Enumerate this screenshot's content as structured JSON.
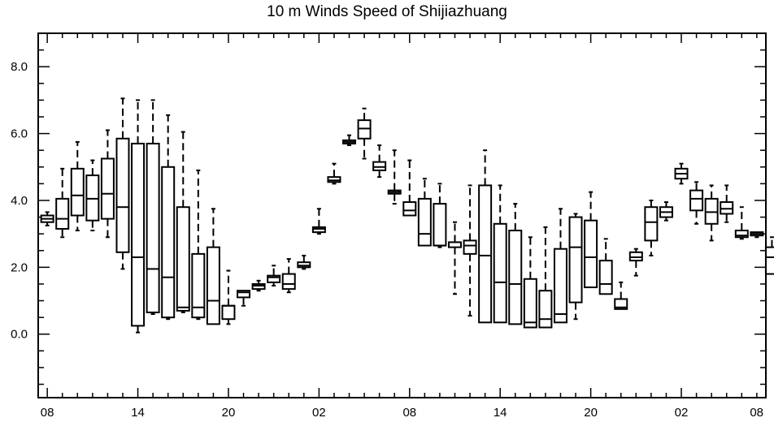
{
  "chart_data": {
    "type": "boxplot",
    "title": "10 m Winds Speed of Shijiazhuang",
    "xlabel": "",
    "ylabel": "",
    "ylim": [
      -1.9,
      9.0
    ],
    "xlim": [
      -0.6,
      47.6
    ],
    "y_ticks": [
      "0.0",
      "2.0",
      "4.0",
      "6.0",
      "8.0"
    ],
    "y_tick_values": [
      0,
      2,
      4,
      6,
      8
    ],
    "x_ticks": [
      "08",
      "14",
      "20",
      "02",
      "08",
      "14",
      "20",
      "02",
      "08"
    ],
    "x_tick_values": [
      0,
      6,
      12,
      18,
      24,
      30,
      36,
      42,
      48
    ],
    "grid": false,
    "colors": {
      "line": "#000000",
      "background": "#ffffff"
    },
    "boxes": [
      {
        "x": 0,
        "min": 3.25,
        "q1": 3.35,
        "median": 3.45,
        "q3": 3.55,
        "max": 3.65
      },
      {
        "x": 1,
        "min": 2.9,
        "q1": 3.15,
        "median": 3.45,
        "q3": 4.05,
        "max": 4.95
      },
      {
        "x": 2,
        "min": 3.1,
        "q1": 3.55,
        "median": 4.15,
        "q3": 4.95,
        "max": 5.75
      },
      {
        "x": 3,
        "min": 3.1,
        "q1": 3.4,
        "median": 4.05,
        "q3": 4.75,
        "max": 5.2
      },
      {
        "x": 4,
        "min": 2.9,
        "q1": 3.45,
        "median": 4.2,
        "q3": 5.25,
        "max": 6.1
      },
      {
        "x": 5,
        "min": 1.95,
        "q1": 2.45,
        "median": 3.8,
        "q3": 5.85,
        "max": 7.05
      },
      {
        "x": 6,
        "min": 0.05,
        "q1": 0.25,
        "median": 2.3,
        "q3": 5.7,
        "max": 7.0
      },
      {
        "x": 7,
        "min": 0.6,
        "q1": 0.65,
        "median": 1.95,
        "q3": 5.7,
        "max": 7.0
      },
      {
        "x": 8,
        "min": 0.45,
        "q1": 0.5,
        "median": 1.7,
        "q3": 5.0,
        "max": 6.55
      },
      {
        "x": 9,
        "min": 0.65,
        "q1": 0.7,
        "median": 0.8,
        "q3": 3.8,
        "max": 6.05
      },
      {
        "x": 10,
        "min": 0.45,
        "q1": 0.5,
        "median": 0.8,
        "q3": 2.4,
        "max": 4.9
      },
      {
        "x": 11,
        "min": 0.3,
        "q1": 0.3,
        "median": 1.0,
        "q3": 2.6,
        "max": 3.75
      },
      {
        "x": 12,
        "min": 0.3,
        "q1": 0.45,
        "median": 0.85,
        "q3": 0.85,
        "max": 1.9
      },
      {
        "x": 13,
        "min": 0.85,
        "q1": 1.1,
        "median": 1.25,
        "q3": 1.3,
        "max": 1.3
      },
      {
        "x": 14,
        "min": 1.3,
        "q1": 1.35,
        "median": 1.45,
        "q3": 1.5,
        "max": 1.6
      },
      {
        "x": 15,
        "min": 1.45,
        "q1": 1.55,
        "median": 1.7,
        "q3": 1.75,
        "max": 2.05
      },
      {
        "x": 16,
        "min": 1.25,
        "q1": 1.35,
        "median": 1.5,
        "q3": 1.8,
        "max": 2.25
      },
      {
        "x": 17,
        "min": 1.95,
        "q1": 2.0,
        "median": 2.05,
        "q3": 2.15,
        "max": 2.35
      },
      {
        "x": 18,
        "min": 3.0,
        "q1": 3.05,
        "median": 3.15,
        "q3": 3.2,
        "max": 3.75
      },
      {
        "x": 19,
        "min": 4.5,
        "q1": 4.55,
        "median": 4.6,
        "q3": 4.7,
        "max": 5.1
      },
      {
        "x": 20,
        "min": 5.65,
        "q1": 5.7,
        "median": 5.75,
        "q3": 5.8,
        "max": 5.95
      },
      {
        "x": 21,
        "min": 5.25,
        "q1": 5.85,
        "median": 6.15,
        "q3": 6.4,
        "max": 6.75
      },
      {
        "x": 22,
        "min": 4.7,
        "q1": 4.9,
        "median": 5.0,
        "q3": 5.15,
        "max": 5.65
      },
      {
        "x": 23,
        "min": 3.9,
        "q1": 4.2,
        "median": 4.25,
        "q3": 4.3,
        "max": 5.5
      },
      {
        "x": 24,
        "min": 3.55,
        "q1": 3.55,
        "median": 3.7,
        "q3": 3.95,
        "max": 5.2
      },
      {
        "x": 25,
        "min": 2.65,
        "q1": 2.65,
        "median": 3.0,
        "q3": 4.05,
        "max": 4.65
      },
      {
        "x": 26,
        "min": 2.6,
        "q1": 2.65,
        "median": 2.65,
        "q3": 3.9,
        "max": 4.5
      },
      {
        "x": 27,
        "min": 1.2,
        "q1": 2.6,
        "median": 2.75,
        "q3": 2.75,
        "max": 3.35
      },
      {
        "x": 28,
        "min": 0.55,
        "q1": 2.4,
        "median": 2.65,
        "q3": 2.8,
        "max": 4.45
      },
      {
        "x": 29,
        "min": 0.35,
        "q1": 0.35,
        "median": 2.35,
        "q3": 4.45,
        "max": 5.5
      },
      {
        "x": 30,
        "min": 0.35,
        "q1": 0.35,
        "median": 1.55,
        "q3": 3.3,
        "max": 4.45
      },
      {
        "x": 31,
        "min": 0.3,
        "q1": 0.3,
        "median": 1.5,
        "q3": 3.1,
        "max": 3.9
      },
      {
        "x": 32,
        "min": 0.2,
        "q1": 0.2,
        "median": 0.35,
        "q3": 1.65,
        "max": 2.9
      },
      {
        "x": 33,
        "min": 0.2,
        "q1": 0.2,
        "median": 0.45,
        "q3": 1.3,
        "max": 3.2
      },
      {
        "x": 34,
        "min": 0.35,
        "q1": 0.35,
        "median": 0.6,
        "q3": 2.55,
        "max": 3.75
      },
      {
        "x": 35,
        "min": 0.45,
        "q1": 0.95,
        "median": 2.6,
        "q3": 3.5,
        "max": 3.6
      },
      {
        "x": 36,
        "min": 1.4,
        "q1": 1.4,
        "median": 2.3,
        "q3": 3.4,
        "max": 4.25
      },
      {
        "x": 37,
        "min": 1.2,
        "q1": 1.2,
        "median": 1.5,
        "q3": 2.2,
        "max": 2.85
      },
      {
        "x": 38,
        "min": 0.75,
        "q1": 0.75,
        "median": 0.8,
        "q3": 1.05,
        "max": 1.55
      },
      {
        "x": 39,
        "min": 1.75,
        "q1": 2.2,
        "median": 2.3,
        "q3": 2.45,
        "max": 2.55
      },
      {
        "x": 40,
        "min": 2.35,
        "q1": 2.8,
        "median": 3.35,
        "q3": 3.8,
        "max": 4.0
      },
      {
        "x": 41,
        "min": 3.4,
        "q1": 3.5,
        "median": 3.65,
        "q3": 3.8,
        "max": 3.95
      },
      {
        "x": 42,
        "min": 4.5,
        "q1": 4.65,
        "median": 4.8,
        "q3": 4.95,
        "max": 5.1
      },
      {
        "x": 43,
        "min": 3.3,
        "q1": 3.7,
        "median": 4.05,
        "q3": 4.3,
        "max": 4.55
      },
      {
        "x": 44,
        "min": 2.8,
        "q1": 3.3,
        "median": 3.65,
        "q3": 4.05,
        "max": 4.45
      },
      {
        "x": 45,
        "min": 3.35,
        "q1": 3.6,
        "median": 3.75,
        "q3": 3.95,
        "max": 4.45
      },
      {
        "x": 46,
        "min": 2.85,
        "q1": 2.9,
        "median": 2.95,
        "q3": 3.1,
        "max": 3.8
      },
      {
        "x": 47,
        "min": 2.9,
        "q1": 2.95,
        "median": 3.0,
        "q3": 3.05,
        "max": 3.05
      },
      {
        "x": 48,
        "min": 1.8,
        "q1": 1.8,
        "median": 2.3,
        "q3": 2.6,
        "max": 2.9
      }
    ]
  }
}
